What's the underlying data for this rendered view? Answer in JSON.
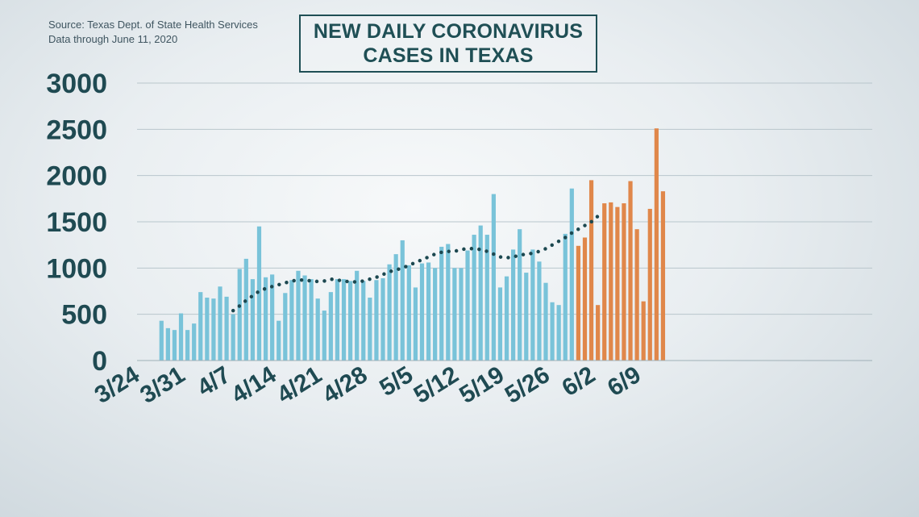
{
  "source_note": {
    "line1": "Source: Texas Dept. of State Health Services",
    "line2": "Data through June 11, 2020"
  },
  "colors": {
    "blue_bar": "#79c3d9",
    "orange_bar": "#e0874a",
    "trend": "#1c4850",
    "grid": "#b9c6cc",
    "text": "#1f4a52"
  },
  "chart_data": {
    "type": "bar",
    "title_lines": [
      "NEW DAILY CORONAVIRUS",
      "CASES IN TEXAS"
    ],
    "ylim": [
      0,
      3000
    ],
    "yticks": [
      0,
      500,
      1000,
      1500,
      2000,
      2500,
      3000
    ],
    "xtick_labels": [
      "3/24",
      "3/31",
      "4/7",
      "4/14",
      "4/21",
      "4/28",
      "5/5",
      "5/12",
      "5/19",
      "5/26",
      "6/2",
      "6/9"
    ],
    "grid": true,
    "start_date": "3/24",
    "series": [
      {
        "color_key": "blue_bar",
        "start_day_index": 3,
        "values": [
          430,
          350,
          330,
          510,
          330,
          400,
          740,
          680,
          670,
          800,
          690,
          500,
          990,
          1100,
          880,
          1450,
          900,
          930,
          430,
          730,
          870,
          970,
          920,
          880,
          670,
          540,
          740,
          880,
          880,
          860,
          970,
          860,
          680,
          870,
          890,
          1040,
          1150,
          1300,
          1030,
          790,
          1050,
          1060,
          1000,
          1230,
          1260,
          1000,
          1000,
          1190,
          1360,
          1460,
          1360,
          1800,
          790,
          910,
          1200,
          1420,
          950,
          1200,
          1070,
          840,
          630,
          600,
          1370,
          1860
        ]
      },
      {
        "color_key": "orange_bar",
        "start_day_index": 67,
        "values": [
          1240,
          1330,
          1950,
          600,
          1700,
          1710,
          1660,
          1700,
          1940,
          1420,
          640,
          1640,
          2510,
          1830
        ]
      }
    ],
    "trend": {
      "color_key": "trend",
      "style": "dotted",
      "start_day_index": 14,
      "values": [
        540,
        590,
        650,
        700,
        750,
        780,
        800,
        820,
        840,
        860,
        870,
        870,
        860,
        855,
        860,
        880,
        870,
        860,
        850,
        850,
        860,
        880,
        900,
        930,
        960,
        980,
        1000,
        1030,
        1060,
        1090,
        1120,
        1150,
        1170,
        1180,
        1180,
        1200,
        1210,
        1210,
        1200,
        1180,
        1150,
        1120,
        1110,
        1120,
        1140,
        1150,
        1160,
        1180,
        1210,
        1250,
        1290,
        1330,
        1380,
        1420,
        1460,
        1500,
        1560
      ]
    }
  }
}
